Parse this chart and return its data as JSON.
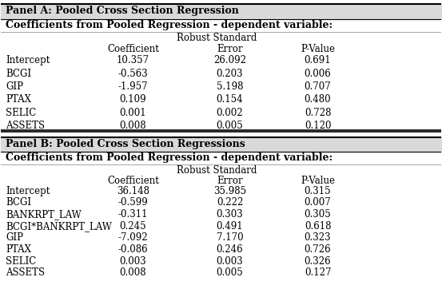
{
  "panel_a_title": "Panel A: Pooled Cross Section Regression",
  "panel_b_title": "Panel B: Pooled Cross Section Regressions",
  "subtitle": "Coefficients from Pooled Regression - dependent variable:",
  "col_header_1": "Robust Standard",
  "col_header_2": "Coefficient",
  "col_header_3": "Error",
  "col_header_4": "P-Value",
  "panel_a_rows": [
    [
      "Intercept",
      "10.357",
      "26.092",
      "0.691"
    ],
    [
      "BCGI",
      "-0.563",
      "0.203",
      "0.006"
    ],
    [
      "GIP",
      "-1.957",
      "5.198",
      "0.707"
    ],
    [
      "PTAX",
      "0.109",
      "0.154",
      "0.480"
    ],
    [
      "SELIC",
      "0.001",
      "0.002",
      "0.728"
    ],
    [
      "ASSETS",
      "0.008",
      "0.005",
      "0.120"
    ]
  ],
  "panel_b_rows": [
    [
      "Intercept",
      "36.148",
      "35.985",
      "0.315"
    ],
    [
      "BCGI",
      "-0.599",
      "0.222",
      "0.007"
    ],
    [
      "BANKRPT_LAW",
      "-0.311",
      "0.303",
      "0.305"
    ],
    [
      "BCGI*BANKRPT_LAW",
      "0.245",
      "0.491",
      "0.618"
    ],
    [
      "GIP",
      "-7.092",
      "7.170",
      "0.323"
    ],
    [
      "PTAX",
      "-0.086",
      "0.246",
      "0.726"
    ],
    [
      "SELIC",
      "0.003",
      "0.003",
      "0.326"
    ],
    [
      "ASSETS",
      "0.008",
      "0.005",
      "0.127"
    ]
  ],
  "bg_color": "#ffffff",
  "text_color": "#000000",
  "header_bg": "#d9d9d9",
  "font_size": 8.5,
  "header_font_size": 9.0
}
